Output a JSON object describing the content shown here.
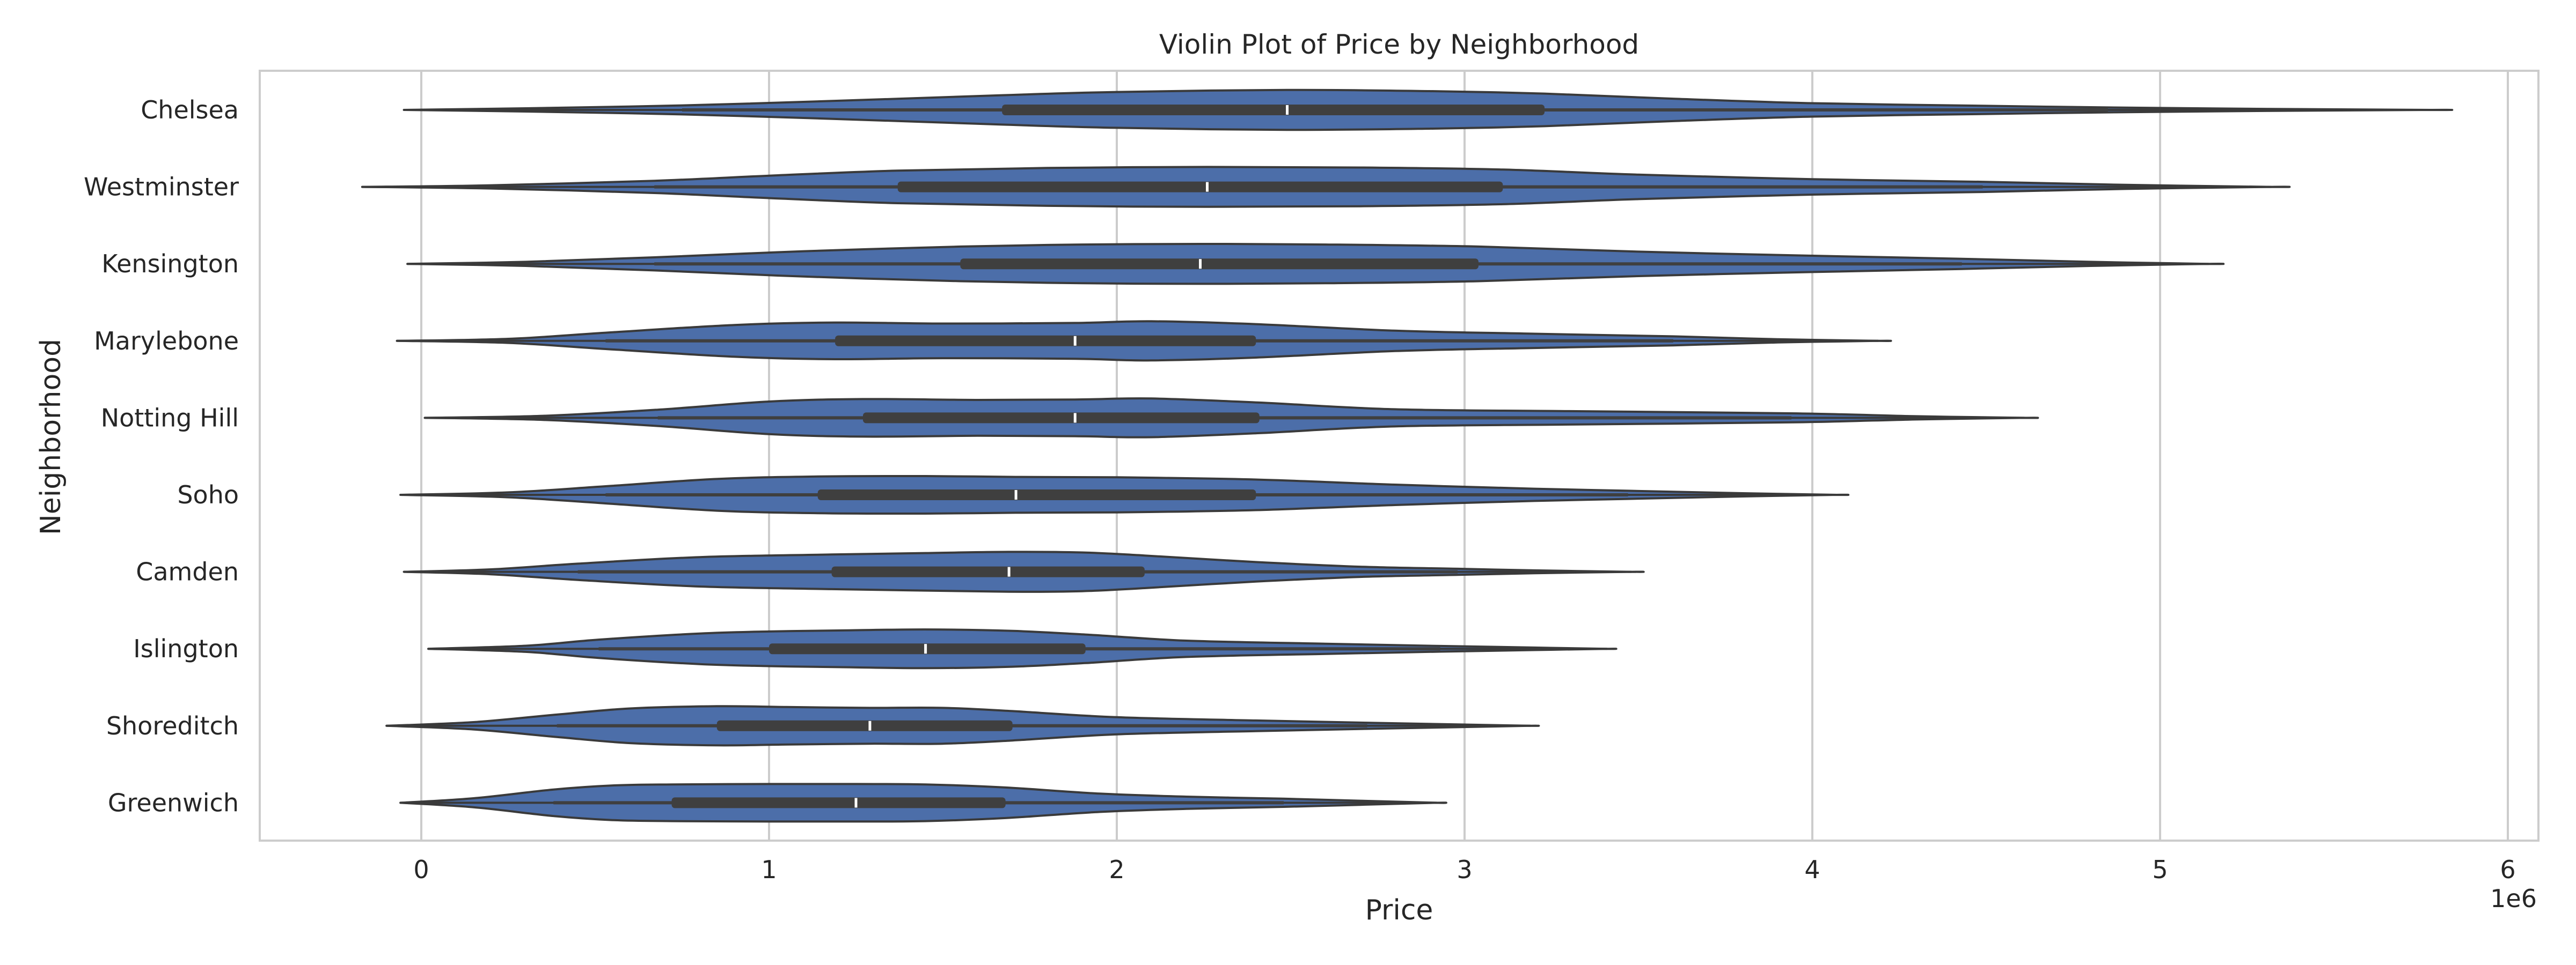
{
  "chart_data": {
    "type": "violin",
    "orientation": "horizontal",
    "title": "Violin Plot of Price by Neighborhood",
    "xlabel": "Price",
    "ylabel": "Neighborhood",
    "x_offset_label": "1e6",
    "xlim": [
      -0.46,
      6.08
    ],
    "x_ticks": [
      0,
      1,
      2,
      3,
      4,
      5,
      6
    ],
    "x_tick_labels": [
      "0",
      "1",
      "2",
      "3",
      "4",
      "5",
      "6"
    ],
    "x_unit_multiplier": 1000000,
    "grid": "vertical",
    "colors": {
      "violin_fill": "#4c6ea9",
      "violin_edge": "#3a3a3a",
      "box": "#3f3f3f",
      "median": "#ffffff",
      "grid": "#cccccc",
      "frame": "#cccccc"
    },
    "categories": [
      "Chelsea",
      "Westminster",
      "Kensington",
      "Marylebone",
      "Notting Hill",
      "Soho",
      "Camden",
      "Islington",
      "Shoreditch",
      "Greenwich"
    ],
    "series": [
      {
        "category": "Chelsea",
        "min": -0.05,
        "max": 5.78,
        "whisker_low": 0.75,
        "q1": 1.67,
        "median": 2.49,
        "q3": 3.23,
        "whisker_high": 4.85,
        "profile": [
          [
            -0.05,
            0.0
          ],
          [
            0.3,
            0.08
          ],
          [
            0.75,
            0.22
          ],
          [
            1.2,
            0.45
          ],
          [
            1.67,
            0.72
          ],
          [
            2.0,
            0.88
          ],
          [
            2.49,
            0.98
          ],
          [
            2.9,
            0.92
          ],
          [
            3.23,
            0.8
          ],
          [
            3.6,
            0.55
          ],
          [
            4.0,
            0.33
          ],
          [
            4.5,
            0.2
          ],
          [
            4.85,
            0.12
          ],
          [
            5.3,
            0.05
          ],
          [
            5.78,
            0.0
          ]
        ]
      },
      {
        "category": "Westminster",
        "min": -0.17,
        "max": 5.32,
        "whisker_low": 0.67,
        "q1": 1.37,
        "median": 2.26,
        "q3": 3.11,
        "whisker_high": 4.49,
        "profile": [
          [
            -0.17,
            0.0
          ],
          [
            0.2,
            0.08
          ],
          [
            0.67,
            0.3
          ],
          [
            1.0,
            0.55
          ],
          [
            1.37,
            0.8
          ],
          [
            1.8,
            0.93
          ],
          [
            2.26,
            0.98
          ],
          [
            2.7,
            0.95
          ],
          [
            3.11,
            0.85
          ],
          [
            3.5,
            0.6
          ],
          [
            4.0,
            0.38
          ],
          [
            4.49,
            0.25
          ],
          [
            4.9,
            0.1
          ],
          [
            5.32,
            0.0
          ]
        ]
      },
      {
        "category": "Kensington",
        "min": -0.04,
        "max": 5.14,
        "whisker_low": 0.67,
        "q1": 1.55,
        "median": 2.24,
        "q3": 3.04,
        "whisker_high": 4.43,
        "profile": [
          [
            -0.04,
            0.0
          ],
          [
            0.3,
            0.1
          ],
          [
            0.67,
            0.32
          ],
          [
            1.1,
            0.62
          ],
          [
            1.55,
            0.85
          ],
          [
            1.9,
            0.95
          ],
          [
            2.24,
            0.98
          ],
          [
            2.6,
            0.95
          ],
          [
            3.04,
            0.85
          ],
          [
            3.5,
            0.6
          ],
          [
            4.0,
            0.4
          ],
          [
            4.43,
            0.25
          ],
          [
            4.8,
            0.1
          ],
          [
            5.14,
            0.0
          ]
        ]
      },
      {
        "category": "Marylebone",
        "min": -0.07,
        "max": 4.19,
        "whisker_low": 0.53,
        "q1": 1.19,
        "median": 1.88,
        "q3": 2.4,
        "whisker_high": 3.6,
        "profile": [
          [
            -0.07,
            0.0
          ],
          [
            0.25,
            0.1
          ],
          [
            0.53,
            0.4
          ],
          [
            0.9,
            0.78
          ],
          [
            1.19,
            0.9
          ],
          [
            1.5,
            0.85
          ],
          [
            1.88,
            0.88
          ],
          [
            2.1,
            0.96
          ],
          [
            2.4,
            0.82
          ],
          [
            2.8,
            0.5
          ],
          [
            3.2,
            0.35
          ],
          [
            3.6,
            0.22
          ],
          [
            3.9,
            0.08
          ],
          [
            4.19,
            0.0
          ]
        ]
      },
      {
        "category": "Notting Hill",
        "min": 0.01,
        "max": 4.61,
        "whisker_low": 0.68,
        "q1": 1.27,
        "median": 1.88,
        "q3": 2.41,
        "whisker_high": 3.94,
        "profile": [
          [
            0.01,
            0.0
          ],
          [
            0.35,
            0.1
          ],
          [
            0.68,
            0.4
          ],
          [
            1.0,
            0.8
          ],
          [
            1.27,
            0.92
          ],
          [
            1.6,
            0.88
          ],
          [
            1.88,
            0.9
          ],
          [
            2.1,
            0.95
          ],
          [
            2.41,
            0.75
          ],
          [
            2.8,
            0.42
          ],
          [
            3.3,
            0.33
          ],
          [
            3.94,
            0.22
          ],
          [
            4.3,
            0.08
          ],
          [
            4.61,
            0.0
          ]
        ]
      },
      {
        "category": "Soho",
        "min": -0.06,
        "max": 4.07,
        "whisker_low": 0.53,
        "q1": 1.14,
        "median": 1.71,
        "q3": 2.4,
        "whisker_high": 3.47,
        "profile": [
          [
            -0.06,
            0.0
          ],
          [
            0.25,
            0.12
          ],
          [
            0.53,
            0.42
          ],
          [
            0.85,
            0.78
          ],
          [
            1.14,
            0.9
          ],
          [
            1.45,
            0.92
          ],
          [
            1.71,
            0.88
          ],
          [
            2.0,
            0.86
          ],
          [
            2.4,
            0.75
          ],
          [
            2.8,
            0.5
          ],
          [
            3.2,
            0.3
          ],
          [
            3.47,
            0.2
          ],
          [
            3.8,
            0.08
          ],
          [
            4.07,
            0.0
          ]
        ]
      },
      {
        "category": "Camden",
        "min": -0.05,
        "max": 3.48,
        "whisker_low": 0.45,
        "q1": 1.18,
        "median": 1.69,
        "q3": 2.08,
        "whisker_high": 2.98,
        "profile": [
          [
            -0.05,
            0.0
          ],
          [
            0.2,
            0.12
          ],
          [
            0.45,
            0.4
          ],
          [
            0.8,
            0.72
          ],
          [
            1.18,
            0.85
          ],
          [
            1.45,
            0.92
          ],
          [
            1.69,
            0.98
          ],
          [
            1.9,
            0.95
          ],
          [
            2.08,
            0.8
          ],
          [
            2.4,
            0.48
          ],
          [
            2.7,
            0.25
          ],
          [
            2.98,
            0.15
          ],
          [
            3.2,
            0.07
          ],
          [
            3.48,
            0.0
          ]
        ]
      },
      {
        "category": "Islington",
        "min": 0.02,
        "max": 3.41,
        "whisker_low": 0.51,
        "q1": 1.0,
        "median": 1.45,
        "q3": 1.91,
        "whisker_high": 2.93,
        "profile": [
          [
            0.02,
            0.0
          ],
          [
            0.3,
            0.15
          ],
          [
            0.51,
            0.45
          ],
          [
            0.8,
            0.75
          ],
          [
            1.0,
            0.85
          ],
          [
            1.2,
            0.9
          ],
          [
            1.45,
            0.95
          ],
          [
            1.7,
            0.88
          ],
          [
            1.91,
            0.7
          ],
          [
            2.2,
            0.4
          ],
          [
            2.6,
            0.25
          ],
          [
            2.93,
            0.14
          ],
          [
            3.2,
            0.06
          ],
          [
            3.41,
            0.0
          ]
        ]
      },
      {
        "category": "Shoreditch",
        "min": -0.1,
        "max": 3.19,
        "whisker_low": 0.39,
        "q1": 0.85,
        "median": 1.29,
        "q3": 1.7,
        "whisker_high": 2.72,
        "profile": [
          [
            -0.1,
            0.0
          ],
          [
            0.15,
            0.18
          ],
          [
            0.39,
            0.55
          ],
          [
            0.6,
            0.85
          ],
          [
            0.85,
            0.96
          ],
          [
            1.05,
            0.92
          ],
          [
            1.29,
            0.88
          ],
          [
            1.5,
            0.88
          ],
          [
            1.7,
            0.72
          ],
          [
            2.0,
            0.42
          ],
          [
            2.4,
            0.26
          ],
          [
            2.72,
            0.15
          ],
          [
            3.0,
            0.06
          ],
          [
            3.19,
            0.0
          ]
        ]
      },
      {
        "category": "Greenwich",
        "min": -0.06,
        "max": 2.92,
        "whisker_low": 0.38,
        "q1": 0.72,
        "median": 1.25,
        "q3": 1.68,
        "whisker_high": 2.48,
        "profile": [
          [
            -0.06,
            0.0
          ],
          [
            0.15,
            0.22
          ],
          [
            0.38,
            0.65
          ],
          [
            0.55,
            0.85
          ],
          [
            0.72,
            0.9
          ],
          [
            1.0,
            0.92
          ],
          [
            1.25,
            0.92
          ],
          [
            1.45,
            0.9
          ],
          [
            1.68,
            0.75
          ],
          [
            1.95,
            0.45
          ],
          [
            2.2,
            0.3
          ],
          [
            2.48,
            0.2
          ],
          [
            2.7,
            0.1
          ],
          [
            2.92,
            0.0
          ]
        ]
      }
    ]
  }
}
